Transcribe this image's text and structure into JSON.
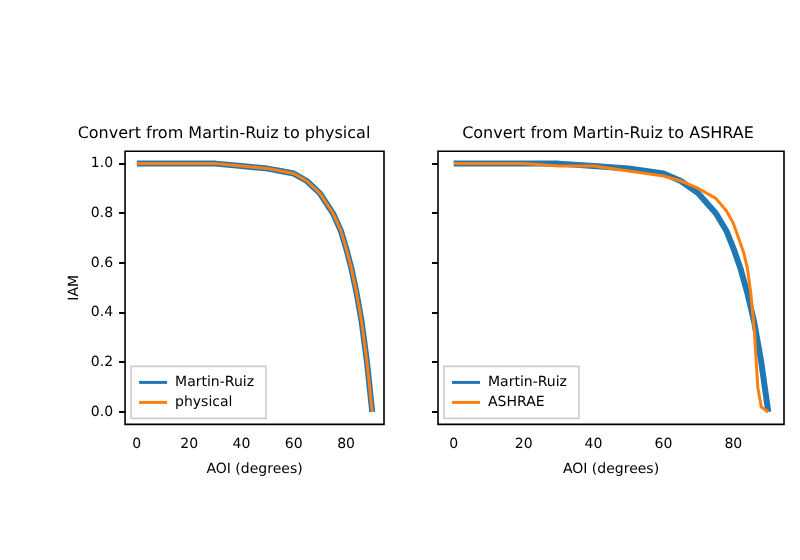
{
  "chart_data": [
    {
      "type": "line",
      "title": "Convert from Martin-Ruiz to physical",
      "xlabel": "AOI (degrees)",
      "ylabel": "IAM",
      "x": [
        0,
        10,
        20,
        30,
        40,
        50,
        55,
        60,
        65,
        70,
        75,
        78,
        80,
        82,
        83,
        84,
        85,
        86,
        87,
        88,
        89,
        90
      ],
      "xlim": [
        -4.5,
        94.5
      ],
      "xticks": [
        0,
        20,
        40,
        60,
        80
      ],
      "ylim": [
        -0.05,
        1.05
      ],
      "yticks": [
        {
          "value": 0,
          "label": "0.0"
        },
        {
          "value": 0.2,
          "label": "0.2"
        },
        {
          "value": 0.4,
          "label": "0.4"
        },
        {
          "value": 0.6,
          "label": "0.6"
        },
        {
          "value": 0.8,
          "label": "0.8"
        },
        {
          "value": 1,
          "label": "1.0"
        }
      ],
      "legend": "bottom left",
      "series": [
        {
          "name": "Martin-Ruiz",
          "color": "#1f77b4",
          "values": [
            1,
            1,
            1,
            1,
            0.99,
            0.98,
            0.97,
            0.96,
            0.93,
            0.88,
            0.8,
            0.73,
            0.66,
            0.58,
            0.53,
            0.48,
            0.42,
            0.36,
            0.28,
            0.2,
            0.1,
            0
          ]
        },
        {
          "name": "physical",
          "color": "#ff7f0e",
          "values": [
            1,
            1,
            1,
            1,
            0.99,
            0.98,
            0.97,
            0.96,
            0.93,
            0.88,
            0.8,
            0.73,
            0.66,
            0.58,
            0.53,
            0.48,
            0.42,
            0.36,
            0.28,
            0.2,
            0.1,
            0
          ]
        }
      ]
    },
    {
      "type": "line",
      "title": "Convert from Martin-Ruiz to ASHRAE",
      "xlabel": "AOI (degrees)",
      "x": [
        0,
        10,
        20,
        30,
        40,
        50,
        55,
        60,
        65,
        70,
        75,
        78,
        80,
        82,
        83,
        84,
        85,
        86,
        87,
        88,
        89,
        90
      ],
      "xlim": [
        -4.5,
        94.5
      ],
      "xticks": [
        0,
        20,
        40,
        60,
        80
      ],
      "ylim": [
        -0.05,
        1.05
      ],
      "yticks": [
        {
          "value": 0,
          "label": null
        },
        {
          "value": 0.2,
          "label": null
        },
        {
          "value": 0.4,
          "label": null
        },
        {
          "value": 0.6,
          "label": null
        },
        {
          "value": 0.8,
          "label": null
        },
        {
          "value": 1,
          "label": null
        }
      ],
      "legend": "bottom left",
      "tick_labels": "x",
      "series": [
        {
          "name": "Martin-Ruiz",
          "color": "#1f77b4",
          "values": [
            1,
            1,
            1,
            1,
            0.99,
            0.98,
            0.97,
            0.96,
            0.93,
            0.88,
            0.8,
            0.73,
            0.66,
            0.58,
            0.53,
            0.48,
            0.42,
            0.36,
            0.28,
            0.2,
            0.1,
            0
          ]
        },
        {
          "name": "ASHRAE",
          "color": "#ff7f0e",
          "values": [
            1,
            1,
            1,
            0.99,
            0.99,
            0.97,
            0.96,
            0.95,
            0.93,
            0.9,
            0.86,
            0.81,
            0.76,
            0.68,
            0.64,
            0.58,
            0.48,
            0.33,
            0.1,
            0.02,
            0.01,
            0
          ]
        }
      ]
    }
  ]
}
